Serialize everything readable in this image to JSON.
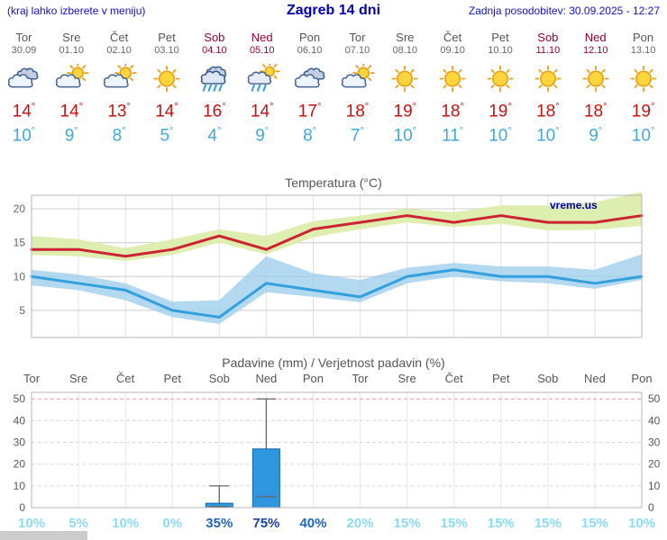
{
  "header": {
    "left_note": "(kraj lahko izberete v meniju)",
    "title": "Zagreb 14 dni",
    "updated": "Zadnja posodobitev: 30.09.2025 - 12:27"
  },
  "units": {
    "degree": "°"
  },
  "days": [
    {
      "name": "Tor",
      "date": "30.09",
      "icon": "cloudy",
      "tmax": "14",
      "tmin": "10",
      "weekend": false
    },
    {
      "name": "Sre",
      "date": "01.10",
      "icon": "sun-cloud",
      "tmax": "14",
      "tmin": "9",
      "weekend": false
    },
    {
      "name": "Čet",
      "date": "02.10",
      "icon": "sun-cloud",
      "tmax": "13",
      "tmin": "8",
      "weekend": false
    },
    {
      "name": "Pet",
      "date": "03.10",
      "icon": "sun",
      "tmax": "14",
      "tmin": "5",
      "weekend": false
    },
    {
      "name": "Sob",
      "date": "04.10",
      "icon": "rain",
      "tmax": "16",
      "tmin": "4",
      "weekend": true
    },
    {
      "name": "Ned",
      "date": "05.10",
      "icon": "sun-rain",
      "tmax": "14",
      "tmin": "9",
      "weekend": true
    },
    {
      "name": "Pon",
      "date": "06.10",
      "icon": "cloudy",
      "tmax": "17",
      "tmin": "8",
      "weekend": false
    },
    {
      "name": "Tor",
      "date": "07.10",
      "icon": "sun-cloud",
      "tmax": "18",
      "tmin": "7",
      "weekend": false
    },
    {
      "name": "Sre",
      "date": "08.10",
      "icon": "sun",
      "tmax": "19",
      "tmin": "10",
      "weekend": false
    },
    {
      "name": "Čet",
      "date": "09.10",
      "icon": "sun",
      "tmax": "18",
      "tmin": "11",
      "weekend": false
    },
    {
      "name": "Pet",
      "date": "10.10",
      "icon": "sun",
      "tmax": "19",
      "tmin": "10",
      "weekend": false
    },
    {
      "name": "Sob",
      "date": "11.10",
      "icon": "sun",
      "tmax": "18",
      "tmin": "10",
      "weekend": true
    },
    {
      "name": "Ned",
      "date": "12.10",
      "icon": "sun",
      "tmax": "18",
      "tmin": "9",
      "weekend": true
    },
    {
      "name": "Pon",
      "date": "13.10",
      "icon": "sun",
      "tmax": "19",
      "tmin": "10",
      "weekend": false
    }
  ],
  "chart_data": [
    {
      "type": "area",
      "title": "Temperatura (°C)",
      "watermark": "vreme.us",
      "x_labels": [
        "Tor",
        "Sre",
        "Čet",
        "Pet",
        "Sob",
        "Ned",
        "Pon",
        "Tor",
        "Sre",
        "Čet",
        "Pet",
        "Sob",
        "Ned",
        "Pon"
      ],
      "ylim": [
        1,
        22
      ],
      "yticks": [
        5,
        10,
        15,
        20
      ],
      "grid": true,
      "series": [
        {
          "name": "tmax-range",
          "type": "band",
          "color": "#dcedaa",
          "opacity": 0.95,
          "high": [
            16,
            15.5,
            14.2,
            15.5,
            17,
            16,
            18.2,
            19,
            20,
            19.5,
            20.5,
            20.5,
            21,
            22.5
          ],
          "low": [
            13.2,
            13,
            12.3,
            13.2,
            15,
            13.3,
            15.8,
            17,
            18,
            17.3,
            17.8,
            16.8,
            16.9,
            17.5
          ]
        },
        {
          "name": "tmin-range",
          "type": "band",
          "color": "#9fd0ec",
          "opacity": 0.8,
          "high": [
            11,
            10.3,
            9,
            6.3,
            6.5,
            13,
            10.5,
            9.5,
            11.3,
            12,
            11.5,
            11.5,
            11,
            13.3
          ],
          "low": [
            8.7,
            8,
            6.5,
            4,
            3,
            7.7,
            7,
            6.2,
            9,
            10,
            9.3,
            9,
            8.2,
            9.5
          ]
        },
        {
          "name": "tmax",
          "type": "line",
          "color": "#cc2233",
          "values": [
            14,
            14,
            13,
            14,
            16,
            14,
            17,
            18,
            19,
            18,
            19,
            18,
            18,
            19
          ]
        },
        {
          "name": "tmin",
          "type": "line",
          "color": "#33a0dd",
          "values": [
            10,
            9,
            8,
            5,
            4,
            9,
            8,
            7,
            10,
            11,
            10,
            10,
            9,
            10
          ]
        }
      ]
    },
    {
      "type": "bar",
      "title": "Padavine (mm) / Verjetnost padavin (%)",
      "x_labels": [
        "Tor",
        "Sre",
        "Čet",
        "Pet",
        "Sob",
        "Ned",
        "Pon",
        "Tor",
        "Sre",
        "Čet",
        "Pet",
        "Sob",
        "Ned",
        "Pon"
      ],
      "ylim": [
        0,
        53
      ],
      "yticks": [
        0,
        10,
        20,
        30,
        40,
        50
      ],
      "bars_mm": [
        0,
        0,
        0,
        0,
        2,
        27,
        0,
        0,
        0,
        0,
        0,
        0,
        0,
        0
      ],
      "whisker_high": [
        null,
        null,
        null,
        null,
        10,
        50,
        null,
        null,
        null,
        null,
        null,
        null,
        null,
        null
      ],
      "whisker_low": [
        null,
        null,
        null,
        null,
        0.5,
        5,
        null,
        null,
        null,
        null,
        null,
        null,
        null,
        null
      ],
      "probabilities": [
        "10%",
        "5%",
        "10%",
        "0%",
        "35%",
        "75%",
        "40%",
        "20%",
        "15%",
        "15%",
        "15%",
        "15%",
        "15%",
        "10%"
      ],
      "prob_emphasis": [
        "low",
        "low",
        "low",
        "low",
        "mid",
        "high",
        "mid",
        "low",
        "low",
        "low",
        "low",
        "low",
        "low",
        "low"
      ]
    }
  ],
  "colors": {
    "header_blue": "#1111cc",
    "title_blue": "#0000bb",
    "weekend_red": "#990033",
    "weekday_gray": "#555555",
    "tmax_red": "#cc1111",
    "tmin_blue": "#3eaade",
    "line_max": "#cc2233",
    "line_min": "#33a0dd",
    "band_max": "#dcedaa",
    "band_min": "#9fd0ec",
    "bar_blue": "#2f96e0",
    "bar_border": "#1565a8",
    "prob_low": "#8adcf2",
    "prob_mid": "#2266bb",
    "prob_high": "#17449f",
    "watermark_blue": "#0000aa"
  }
}
